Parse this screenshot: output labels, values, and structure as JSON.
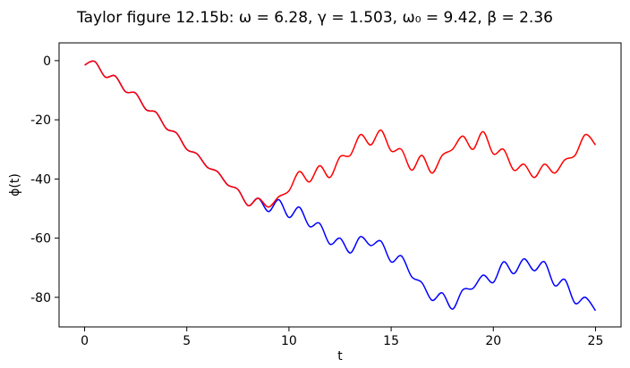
{
  "chart_data": {
    "type": "line",
    "title": "Taylor figure 12.15b:   ω = 6.28,  γ = 1.503,  ω₀ = 9.42,  β = 2.36",
    "xlabel": "t",
    "ylabel": "ϕ(t)",
    "xlim": [
      -1.25,
      26.25
    ],
    "ylim": [
      -90,
      6
    ],
    "xticks": [
      0,
      5,
      10,
      15,
      20,
      25
    ],
    "yticks": [
      0,
      -20,
      -40,
      -60,
      -80
    ],
    "grid": false,
    "legend": "none",
    "x": [
      0,
      0.5,
      1,
      1.5,
      2,
      2.5,
      3,
      3.5,
      4,
      4.5,
      5,
      5.5,
      6,
      6.5,
      7,
      7.5,
      8,
      8.5,
      9,
      9.5,
      10,
      10.5,
      11,
      11.5,
      12,
      12.5,
      13,
      13.5,
      14,
      14.5,
      15,
      15.5,
      16,
      16.5,
      17,
      17.5,
      18,
      18.5,
      19,
      19.5,
      20,
      20.5,
      21,
      21.5,
      22,
      22.5,
      23,
      23.5,
      24,
      24.5,
      25
    ],
    "series": [
      {
        "color": "#0000ff",
        "values": [
          -1.5,
          -0.3,
          -5.5,
          -5.2,
          -10.5,
          -11.0,
          -16.5,
          -17.5,
          -23.0,
          -24.5,
          -30.0,
          -31.5,
          -36.0,
          -37.5,
          -42.0,
          -43.5,
          -49.0,
          -46.5,
          -51.0,
          -47.0,
          -53.0,
          -49.5,
          -56.0,
          -55.0,
          -62.0,
          -60.0,
          -65.0,
          -59.5,
          -62.5,
          -61.0,
          -68.0,
          -66.0,
          -73.0,
          -75.0,
          -81.0,
          -78.5,
          -84.0,
          -77.5,
          -77.0,
          -72.5,
          -75.0,
          -68.0,
          -72.0,
          -67.0,
          -71.0,
          -68.0,
          -76.0,
          -74.0,
          -82.0,
          -80.0,
          -84.5
        ]
      },
      {
        "color": "#ff0000",
        "values": [
          -1.5,
          -0.3,
          -5.5,
          -5.2,
          -10.5,
          -11.0,
          -16.5,
          -17.5,
          -23.0,
          -24.5,
          -30.0,
          -31.5,
          -36.0,
          -37.5,
          -42.0,
          -43.5,
          -49.0,
          -46.5,
          -49.5,
          -46.0,
          -44.0,
          -37.5,
          -41.0,
          -35.5,
          -39.5,
          -32.5,
          -32.0,
          -25.0,
          -28.5,
          -23.5,
          -30.5,
          -30.0,
          -37.0,
          -32.0,
          -38.0,
          -32.0,
          -30.0,
          -25.5,
          -30.0,
          -24.0,
          -31.5,
          -30.0,
          -37.0,
          -35.0,
          -39.5,
          -35.0,
          -38.0,
          -33.5,
          -32.0,
          -25.0,
          -28.5
        ]
      }
    ]
  }
}
